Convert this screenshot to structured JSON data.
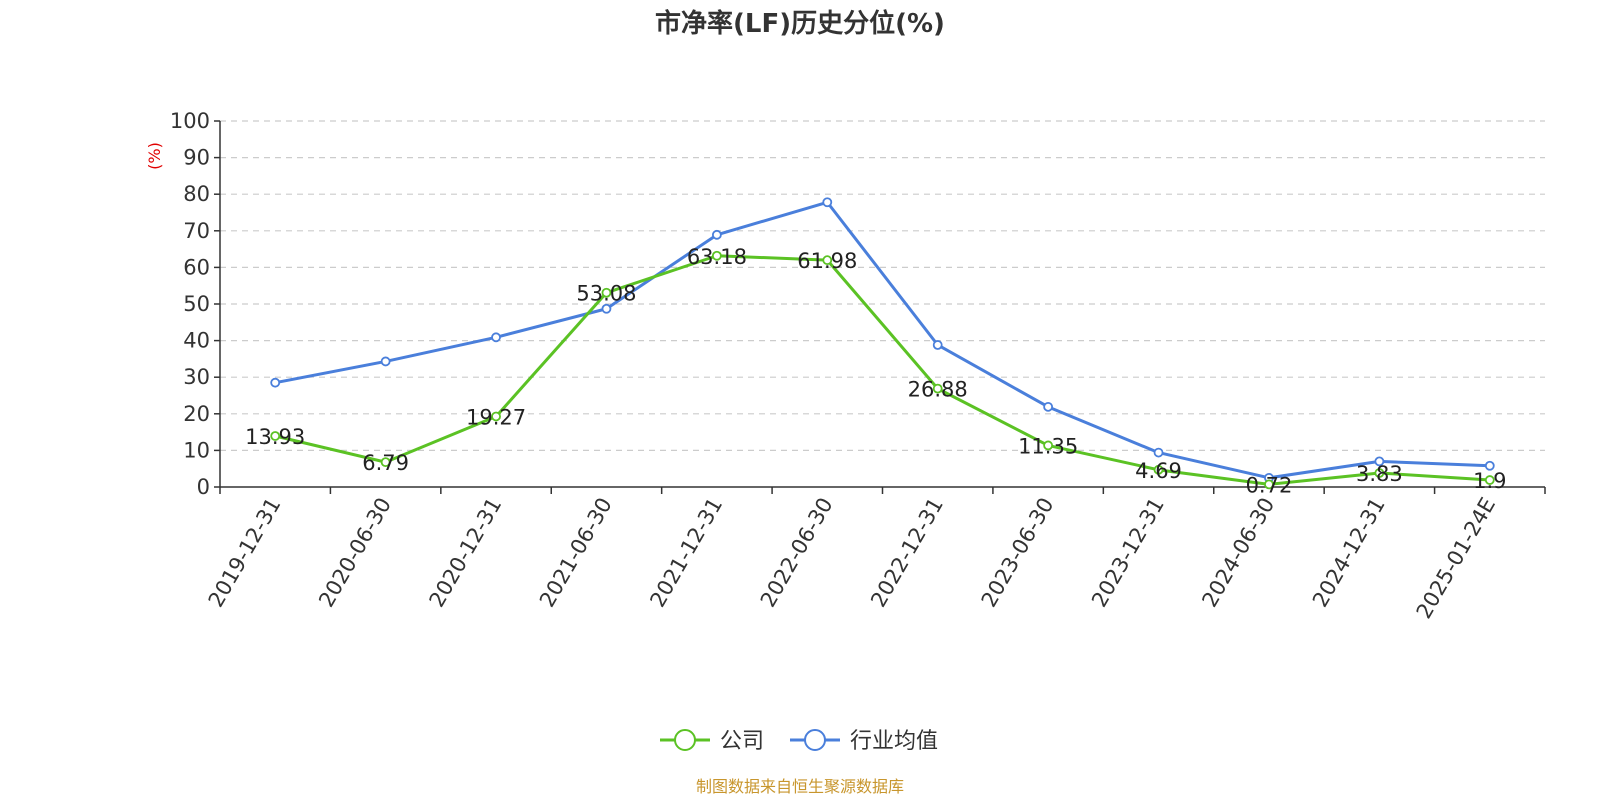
{
  "chart_data": {
    "type": "line",
    "title": "市净率(LF)历史分位(%)",
    "ylabel": "(%)",
    "ylim": [
      0,
      100
    ],
    "yticks": [
      0,
      10,
      20,
      30,
      40,
      50,
      60,
      70,
      80,
      90,
      100
    ],
    "grid": true,
    "legend_position": "bottom",
    "categories": [
      "2019-12-31",
      "2020-06-30",
      "2020-12-31",
      "2021-06-30",
      "2021-12-31",
      "2022-06-30",
      "2022-12-31",
      "2023-06-30",
      "2023-12-31",
      "2024-06-30",
      "2024-12-31",
      "2025-01-24E"
    ],
    "series": [
      {
        "name": "公司",
        "color": "#5bc224",
        "values": [
          13.93,
          6.79,
          19.27,
          53.08,
          63.18,
          61.98,
          26.88,
          11.35,
          4.69,
          0.72,
          3.83,
          1.9
        ],
        "labels": [
          "13.93",
          "6.79",
          "19.27",
          "53.08",
          "63.18",
          "61.98",
          "26.88",
          "11.35",
          "4.69",
          "0.72",
          "3.83",
          "1.9"
        ]
      },
      {
        "name": "行业均值",
        "color": "#4a7fdb",
        "values": [
          28.5,
          34.3,
          40.9,
          48.7,
          68.9,
          77.8,
          38.8,
          21.9,
          9.4,
          2.5,
          7.0,
          5.8
        ]
      }
    ],
    "source": "制图数据来自恒生聚源数据库",
    "colors": {
      "unit": "#e00000",
      "source": "#c8962d",
      "axis": "#333333",
      "grid": "#cccccc"
    }
  }
}
